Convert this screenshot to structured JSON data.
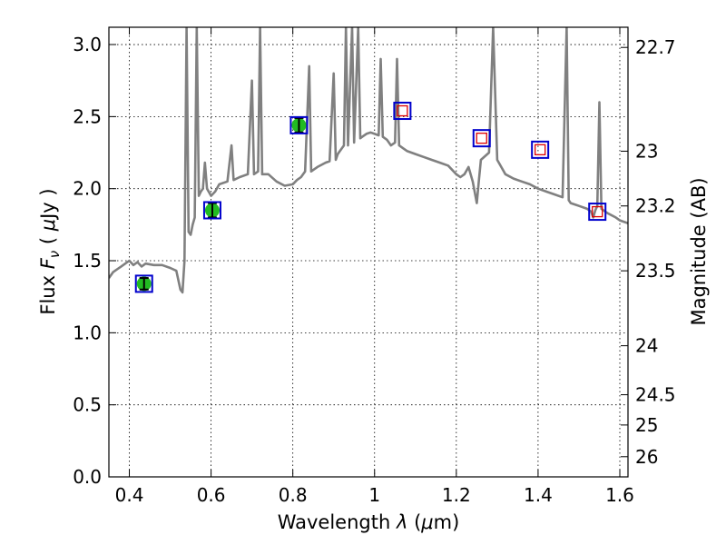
{
  "chart_data": {
    "type": "line",
    "title": "",
    "xlabel_parts": [
      "Wavelength  ",
      "λ",
      " (",
      "μ",
      "m)"
    ],
    "ylabel_parts": [
      "Flux  ",
      "F",
      "ν",
      "  ( ",
      "μ",
      "Jy )"
    ],
    "y2label": "Magnitude (AB)",
    "xlim": [
      0.35,
      1.62
    ],
    "ylim": [
      0.0,
      3.12
    ],
    "grid": true,
    "x_ticks": [
      0.4,
      0.6,
      0.8,
      1.0,
      1.2,
      1.4,
      1.6
    ],
    "x_tick_labels": [
      "0.4",
      "0.6",
      "0.8",
      "1",
      "1.2",
      "1.4",
      "1.6"
    ],
    "y_ticks": [
      0.0,
      0.5,
      1.0,
      1.5,
      2.0,
      2.5,
      3.0
    ],
    "y_tick_labels": [
      "0.0",
      "0.5",
      "1.0",
      "1.5",
      "2.0",
      "2.5",
      "3.0"
    ],
    "y2_ticks": [
      {
        "label": "22.7",
        "flux": 2.98
      },
      {
        "label": "23",
        "flux": 2.26
      },
      {
        "label": "23.2",
        "flux": 1.88
      },
      {
        "label": "23.5",
        "flux": 1.43
      },
      {
        "label": "24",
        "flux": 0.91
      },
      {
        "label": "24.5",
        "flux": 0.57
      },
      {
        "label": "25",
        "flux": 0.36
      },
      {
        "label": "26",
        "flux": 0.14
      }
    ],
    "series": [
      {
        "type": "line",
        "color": "#808080",
        "points": [
          [
            0.35,
            1.38
          ],
          [
            0.36,
            1.42
          ],
          [
            0.37,
            1.44
          ],
          [
            0.38,
            1.46
          ],
          [
            0.39,
            1.48
          ],
          [
            0.4,
            1.5
          ],
          [
            0.41,
            1.47
          ],
          [
            0.42,
            1.49
          ],
          [
            0.43,
            1.46
          ],
          [
            0.44,
            1.48
          ],
          [
            0.46,
            1.47
          ],
          [
            0.48,
            1.47
          ],
          [
            0.5,
            1.45
          ],
          [
            0.515,
            1.43
          ],
          [
            0.525,
            1.3
          ],
          [
            0.53,
            1.28
          ],
          [
            0.535,
            1.5
          ],
          [
            0.54,
            3.12
          ],
          [
            0.545,
            1.7
          ],
          [
            0.55,
            1.68
          ],
          [
            0.555,
            1.75
          ],
          [
            0.56,
            1.8
          ],
          [
            0.565,
            3.12
          ],
          [
            0.57,
            1.95
          ],
          [
            0.575,
            1.98
          ],
          [
            0.58,
            2.0
          ],
          [
            0.585,
            2.18
          ],
          [
            0.59,
            2.0
          ],
          [
            0.6,
            1.95
          ],
          [
            0.61,
            1.98
          ],
          [
            0.62,
            2.03
          ],
          [
            0.64,
            2.05
          ],
          [
            0.65,
            2.3
          ],
          [
            0.655,
            2.06
          ],
          [
            0.67,
            2.08
          ],
          [
            0.69,
            2.1
          ],
          [
            0.7,
            2.75
          ],
          [
            0.705,
            2.1
          ],
          [
            0.715,
            2.12
          ],
          [
            0.72,
            3.12
          ],
          [
            0.725,
            2.1
          ],
          [
            0.74,
            2.1
          ],
          [
            0.76,
            2.05
          ],
          [
            0.78,
            2.02
          ],
          [
            0.8,
            2.03
          ],
          [
            0.81,
            2.06
          ],
          [
            0.82,
            2.08
          ],
          [
            0.83,
            2.12
          ],
          [
            0.84,
            2.85
          ],
          [
            0.845,
            2.12
          ],
          [
            0.86,
            2.15
          ],
          [
            0.88,
            2.18
          ],
          [
            0.89,
            2.19
          ],
          [
            0.9,
            2.8
          ],
          [
            0.905,
            2.2
          ],
          [
            0.91,
            2.24
          ],
          [
            0.92,
            2.28
          ],
          [
            0.925,
            2.3
          ],
          [
            0.93,
            3.12
          ],
          [
            0.935,
            2.3
          ],
          [
            0.945,
            3.12
          ],
          [
            0.95,
            2.32
          ],
          [
            0.96,
            3.12
          ],
          [
            0.965,
            2.35
          ],
          [
            0.97,
            2.36
          ],
          [
            0.98,
            2.38
          ],
          [
            0.99,
            2.39
          ],
          [
            1.0,
            2.38
          ],
          [
            1.01,
            2.37
          ],
          [
            1.015,
            2.9
          ],
          [
            1.02,
            2.36
          ],
          [
            1.03,
            2.34
          ],
          [
            1.04,
            2.3
          ],
          [
            1.05,
            2.32
          ],
          [
            1.055,
            2.9
          ],
          [
            1.06,
            2.3
          ],
          [
            1.07,
            2.28
          ],
          [
            1.08,
            2.26
          ],
          [
            1.09,
            2.25
          ],
          [
            1.1,
            2.24
          ],
          [
            1.12,
            2.22
          ],
          [
            1.14,
            2.2
          ],
          [
            1.16,
            2.18
          ],
          [
            1.18,
            2.16
          ],
          [
            1.2,
            2.1
          ],
          [
            1.21,
            2.08
          ],
          [
            1.22,
            2.1
          ],
          [
            1.23,
            2.15
          ],
          [
            1.24,
            2.05
          ],
          [
            1.25,
            1.9
          ],
          [
            1.255,
            2.05
          ],
          [
            1.26,
            2.2
          ],
          [
            1.28,
            2.25
          ],
          [
            1.29,
            3.12
          ],
          [
            1.3,
            2.2
          ],
          [
            1.31,
            2.15
          ],
          [
            1.32,
            2.1
          ],
          [
            1.34,
            2.07
          ],
          [
            1.36,
            2.05
          ],
          [
            1.38,
            2.03
          ],
          [
            1.4,
            2.0
          ],
          [
            1.42,
            1.98
          ],
          [
            1.44,
            1.96
          ],
          [
            1.46,
            1.94
          ],
          [
            1.47,
            3.12
          ],
          [
            1.475,
            1.92
          ],
          [
            1.48,
            1.9
          ],
          [
            1.5,
            1.88
          ],
          [
            1.52,
            1.86
          ],
          [
            1.53,
            1.84
          ],
          [
            1.535,
            1.8
          ],
          [
            1.54,
            1.85
          ],
          [
            1.545,
            1.88
          ],
          [
            1.55,
            2.6
          ],
          [
            1.555,
            1.86
          ],
          [
            1.57,
            1.83
          ],
          [
            1.59,
            1.8
          ],
          [
            1.6,
            1.78
          ],
          [
            1.62,
            1.76
          ]
        ]
      }
    ],
    "photometry": [
      {
        "x": 0.436,
        "y": 1.34,
        "err": 0.04,
        "observed": true
      },
      {
        "x": 0.603,
        "y": 1.85,
        "err": 0.05,
        "observed": true
      },
      {
        "x": 0.815,
        "y": 2.44,
        "err": 0.05,
        "observed": true
      },
      {
        "x": 1.068,
        "y": 2.54,
        "observed": false
      },
      {
        "x": 1.262,
        "y": 2.35,
        "observed": false
      },
      {
        "x": 1.405,
        "y": 2.27,
        "observed": false
      },
      {
        "x": 1.545,
        "y": 1.84,
        "observed": false
      }
    ],
    "colors": {
      "spectrum": "#808080",
      "observed_fill": "#22bb22",
      "box": "#0000cc",
      "model_marker": "#dd0000",
      "errorbar": "#000000"
    }
  }
}
